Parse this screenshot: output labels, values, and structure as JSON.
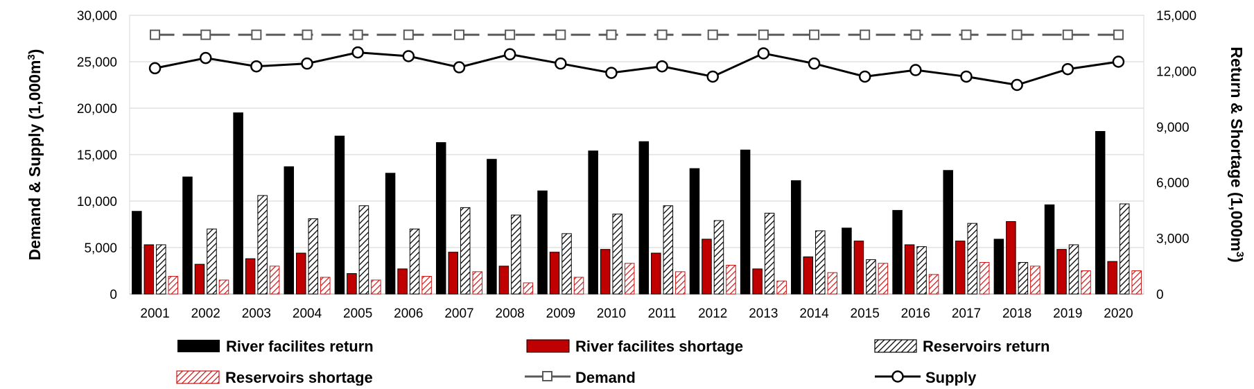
{
  "chart_data": {
    "type": "bar+line",
    "categories": [
      "2001",
      "2002",
      "2003",
      "2004",
      "2005",
      "2006",
      "2007",
      "2008",
      "2009",
      "2010",
      "2011",
      "2012",
      "2013",
      "2014",
      "2015",
      "2016",
      "2017",
      "2018",
      "2019",
      "2020"
    ],
    "left_axis": {
      "label_html": "Demand & Supply (1,000m³)",
      "label_base": "Demand & Supply (1,000m",
      "label_sup": "3",
      "label_close": ")",
      "ylim": [
        0,
        30000
      ],
      "ticks": [
        0,
        5000,
        10000,
        15000,
        20000,
        25000,
        30000
      ],
      "tick_labels": [
        "0",
        "5,000",
        "10,000",
        "15,000",
        "20,000",
        "25,000",
        "30,000"
      ]
    },
    "right_axis": {
      "label_base": "Return & Shortage (1,000m",
      "label_sup": "3",
      "label_close": ")",
      "ylim": [
        0,
        15000
      ],
      "ticks": [
        0,
        3000,
        6000,
        9000,
        12000,
        15000
      ],
      "tick_labels": [
        "0",
        "3,000",
        "6,000",
        "9,000",
        "12,000",
        "15,000"
      ]
    },
    "grid": true,
    "legend_position": "bottom",
    "bar_series": [
      {
        "name": "River facilites return",
        "style": "solid-black",
        "values": [
          4450,
          6300,
          9750,
          6850,
          8500,
          6500,
          8150,
          7250,
          5550,
          7700,
          8200,
          6750,
          7750,
          6100,
          3550,
          4500,
          6650,
          2950,
          4800,
          8750
        ]
      },
      {
        "name": "River facilites shortage",
        "style": "solid-red",
        "values": [
          2650,
          1600,
          1900,
          2200,
          1100,
          1350,
          2250,
          1500,
          2250,
          2400,
          2200,
          2950,
          1350,
          2000,
          2850,
          2650,
          2850,
          3900,
          2400,
          1750
        ]
      },
      {
        "name": "Reservoirs return",
        "style": "hatch-black",
        "values": [
          2650,
          3500,
          5300,
          4050,
          4750,
          3500,
          4650,
          4250,
          3250,
          4300,
          4750,
          3950,
          4350,
          3400,
          1850,
          2550,
          3800,
          1700,
          2650,
          4850
        ]
      },
      {
        "name": "Reservoirs shortage",
        "style": "hatch-red",
        "values": [
          950,
          750,
          1500,
          900,
          750,
          950,
          1200,
          600,
          900,
          1650,
          1200,
          1550,
          700,
          1150,
          1650,
          1050,
          1700,
          1500,
          1250,
          1250
        ]
      }
    ],
    "line_series": [
      {
        "name": "Demand",
        "style": "dashed-grey-square",
        "values": [
          27900,
          27900,
          27900,
          27900,
          27900,
          27900,
          27900,
          27900,
          27900,
          27900,
          27900,
          27900,
          27900,
          27900,
          27900,
          27900,
          27900,
          27900,
          27900,
          27900
        ]
      },
      {
        "name": "Supply",
        "style": "solid-black-circle",
        "values": [
          24300,
          25400,
          24500,
          24800,
          26000,
          25600,
          24400,
          25800,
          24800,
          23800,
          24500,
          23400,
          25900,
          24800,
          23400,
          24100,
          23400,
          22500,
          24200,
          25000
        ]
      }
    ]
  }
}
